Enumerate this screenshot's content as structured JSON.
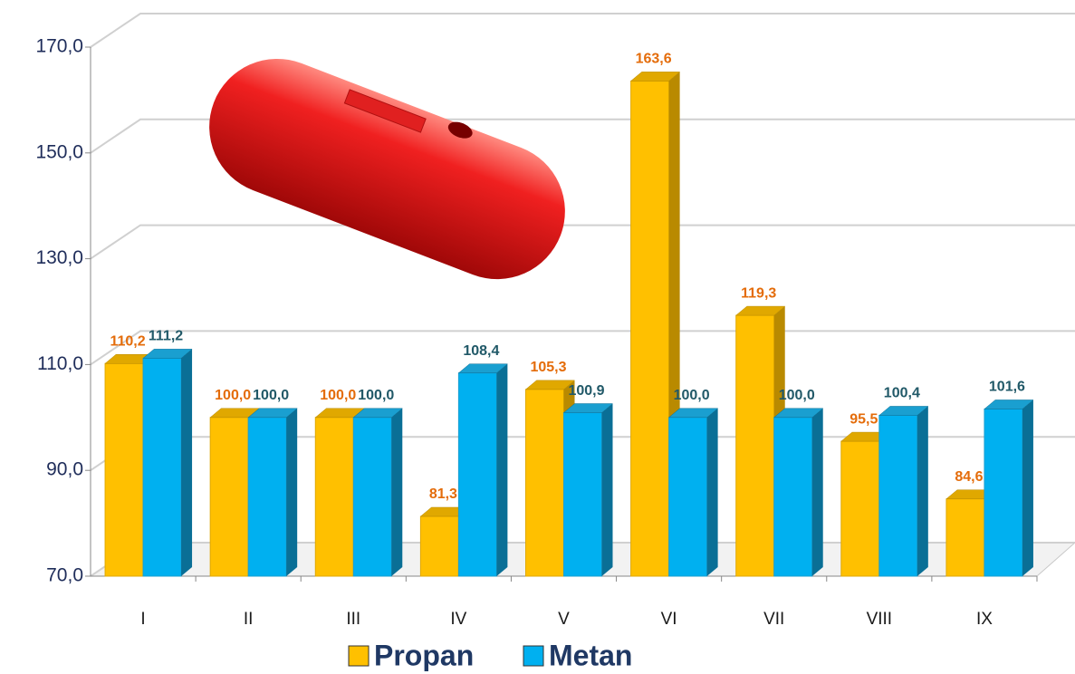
{
  "chart_data": {
    "type": "bar3d",
    "categories": [
      "I",
      "II",
      "III",
      "IV",
      "V",
      "VI",
      "VII",
      "VIII",
      "IX"
    ],
    "series": [
      {
        "name": "Propan",
        "color": "#ffc000",
        "values": [
          110.2,
          100.0,
          100.0,
          81.3,
          105.3,
          163.6,
          119.3,
          95.5,
          84.6
        ],
        "value_labels": [
          "110,2",
          "100,0",
          "100,0",
          "81,3",
          "105,3",
          "163,6",
          "119,3",
          "95,5",
          "84,6"
        ]
      },
      {
        "name": "Metan",
        "color": "#00b0f0",
        "values": [
          111.2,
          100.0,
          100.0,
          108.4,
          100.9,
          100.0,
          100.0,
          100.4,
          101.6
        ],
        "value_labels": [
          "111,2",
          "100,0",
          "100,0",
          "108,4",
          "100,9",
          "100,0",
          "100,0",
          "100,4",
          "101,6"
        ]
      }
    ],
    "ylim": [
      70,
      170
    ],
    "yticks": [
      {
        "value": 70,
        "label": "70,0"
      },
      {
        "value": 90,
        "label": "90,0"
      },
      {
        "value": 110,
        "label": "110,0"
      },
      {
        "value": 130,
        "label": "130,0"
      },
      {
        "value": 150,
        "label": "150,0"
      },
      {
        "value": 170,
        "label": "170,0"
      }
    ],
    "grid": true
  }
}
